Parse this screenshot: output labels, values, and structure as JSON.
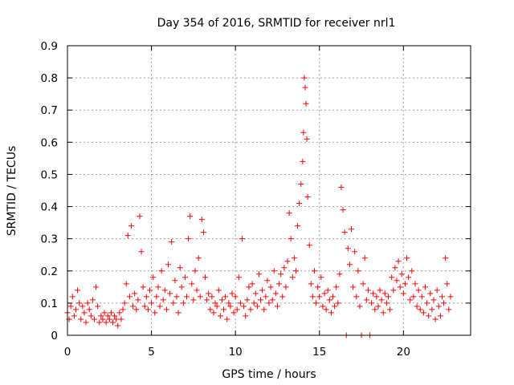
{
  "chart_data": {
    "type": "scatter",
    "title": "Day 354 of 2016, SRMTID for receiver nrl1",
    "xlabel": "GPS time / hours",
    "ylabel": "SRMTID / TECUs",
    "xlim": [
      0,
      24
    ],
    "ylim": [
      0,
      0.9
    ],
    "xticks": [
      0,
      5,
      10,
      15,
      20
    ],
    "xtick_labels": [
      "0",
      "5",
      "10",
      "15",
      "20"
    ],
    "yticks": [
      0,
      0.1,
      0.2,
      0.3,
      0.4,
      0.5,
      0.6,
      0.7,
      0.8,
      0.9
    ],
    "ytick_labels": [
      "0",
      "0.1",
      "0.2",
      "0.3",
      "0.4",
      "0.5",
      "0.6",
      "0.7",
      "0.8",
      "0.9"
    ],
    "grid": true,
    "marker": "+",
    "series": [
      {
        "name": "SRMTID",
        "color": "#ff0000",
        "points": [
          [
            0.0,
            0.07
          ],
          [
            0.1,
            0.05
          ],
          [
            0.2,
            0.09
          ],
          [
            0.3,
            0.12
          ],
          [
            0.4,
            0.06
          ],
          [
            0.5,
            0.08
          ],
          [
            0.6,
            0.14
          ],
          [
            0.7,
            0.1
          ],
          [
            0.8,
            0.05
          ],
          [
            0.9,
            0.09
          ],
          [
            1.0,
            0.07
          ],
          [
            1.1,
            0.04
          ],
          [
            1.2,
            0.1
          ],
          [
            1.3,
            0.08
          ],
          [
            1.4,
            0.06
          ],
          [
            1.5,
            0.11
          ],
          [
            1.6,
            0.05
          ],
          [
            1.7,
            0.15
          ],
          [
            1.8,
            0.09
          ],
          [
            1.9,
            0.04
          ],
          [
            2.0,
            0.06
          ],
          [
            2.1,
            0.05
          ],
          [
            2.2,
            0.07
          ],
          [
            2.3,
            0.04
          ],
          [
            2.4,
            0.06
          ],
          [
            2.5,
            0.05
          ],
          [
            2.6,
            0.07
          ],
          [
            2.7,
            0.04
          ],
          [
            2.8,
            0.06
          ],
          [
            2.9,
            0.05
          ],
          [
            3.0,
            0.03
          ],
          [
            3.1,
            0.07
          ],
          [
            3.2,
            0.05
          ],
          [
            3.3,
            0.08
          ],
          [
            3.4,
            0.1
          ],
          [
            3.5,
            0.16
          ],
          [
            3.6,
            0.31
          ],
          [
            3.7,
            0.12
          ],
          [
            3.8,
            0.34
          ],
          [
            3.9,
            0.09
          ],
          [
            4.0,
            0.13
          ],
          [
            4.1,
            0.08
          ],
          [
            4.2,
            0.11
          ],
          [
            4.3,
            0.37
          ],
          [
            4.4,
            0.26
          ],
          [
            4.5,
            0.15
          ],
          [
            4.6,
            0.09
          ],
          [
            4.7,
            0.12
          ],
          [
            4.8,
            0.08
          ],
          [
            4.9,
            0.14
          ],
          [
            5.0,
            0.1
          ],
          [
            5.1,
            0.18
          ],
          [
            5.2,
            0.07
          ],
          [
            5.3,
            0.12
          ],
          [
            5.4,
            0.15
          ],
          [
            5.5,
            0.09
          ],
          [
            5.6,
            0.2
          ],
          [
            5.7,
            0.11
          ],
          [
            5.8,
            0.14
          ],
          [
            5.9,
            0.08
          ],
          [
            6.0,
            0.22
          ],
          [
            6.1,
            0.13
          ],
          [
            6.2,
            0.29
          ],
          [
            6.3,
            0.1
          ],
          [
            6.4,
            0.17
          ],
          [
            6.5,
            0.12
          ],
          [
            6.6,
            0.07
          ],
          [
            6.7,
            0.21
          ],
          [
            6.8,
            0.15
          ],
          [
            6.9,
            0.1
          ],
          [
            7.0,
            0.18
          ],
          [
            7.1,
            0.12
          ],
          [
            7.2,
            0.3
          ],
          [
            7.3,
            0.37
          ],
          [
            7.4,
            0.16
          ],
          [
            7.5,
            0.11
          ],
          [
            7.6,
            0.2
          ],
          [
            7.7,
            0.14
          ],
          [
            7.8,
            0.24
          ],
          [
            7.9,
            0.12
          ],
          [
            8.0,
            0.36
          ],
          [
            8.1,
            0.32
          ],
          [
            8.2,
            0.18
          ],
          [
            8.3,
            0.11
          ],
          [
            8.4,
            0.13
          ],
          [
            8.5,
            0.08
          ],
          [
            8.6,
            0.12
          ],
          [
            8.7,
            0.07
          ],
          [
            8.8,
            0.1
          ],
          [
            8.9,
            0.09
          ],
          [
            9.0,
            0.14
          ],
          [
            9.1,
            0.06
          ],
          [
            9.2,
            0.11
          ],
          [
            9.3,
            0.08
          ],
          [
            9.4,
            0.12
          ],
          [
            9.5,
            0.05
          ],
          [
            9.6,
            0.1
          ],
          [
            9.7,
            0.09
          ],
          [
            9.8,
            0.13
          ],
          [
            9.9,
            0.07
          ],
          [
            10.0,
            0.12
          ],
          [
            10.1,
            0.08
          ],
          [
            10.2,
            0.18
          ],
          [
            10.3,
            0.1
          ],
          [
            10.4,
            0.3
          ],
          [
            10.5,
            0.09
          ],
          [
            10.6,
            0.06
          ],
          [
            10.7,
            0.11
          ],
          [
            10.8,
            0.15
          ],
          [
            10.9,
            0.08
          ],
          [
            11.0,
            0.16
          ],
          [
            11.1,
            0.1
          ],
          [
            11.2,
            0.13
          ],
          [
            11.3,
            0.09
          ],
          [
            11.4,
            0.19
          ],
          [
            11.5,
            0.11
          ],
          [
            11.6,
            0.14
          ],
          [
            11.7,
            0.08
          ],
          [
            11.8,
            0.12
          ],
          [
            11.9,
            0.17
          ],
          [
            12.0,
            0.1
          ],
          [
            12.1,
            0.15
          ],
          [
            12.2,
            0.11
          ],
          [
            12.3,
            0.2
          ],
          [
            12.4,
            0.13
          ],
          [
            12.5,
            0.09
          ],
          [
            12.6,
            0.16
          ],
          [
            12.7,
            0.19
          ],
          [
            12.8,
            0.12
          ],
          [
            12.9,
            0.21
          ],
          [
            13.0,
            0.15
          ],
          [
            13.1,
            0.23
          ],
          [
            13.2,
            0.38
          ],
          [
            13.3,
            0.3
          ],
          [
            13.4,
            0.18
          ],
          [
            13.5,
            0.24
          ],
          [
            13.6,
            0.2
          ],
          [
            13.7,
            0.34
          ],
          [
            13.8,
            0.41
          ],
          [
            13.9,
            0.47
          ],
          [
            14.0,
            0.54
          ],
          [
            14.05,
            0.63
          ],
          [
            14.1,
            0.8
          ],
          [
            14.15,
            0.77
          ],
          [
            14.2,
            0.72
          ],
          [
            14.25,
            0.61
          ],
          [
            14.3,
            0.43
          ],
          [
            14.4,
            0.28
          ],
          [
            14.5,
            0.16
          ],
          [
            14.6,
            0.12
          ],
          [
            14.7,
            0.2
          ],
          [
            14.8,
            0.1
          ],
          [
            14.9,
            0.15
          ],
          [
            15.0,
            0.12
          ],
          [
            15.1,
            0.18
          ],
          [
            15.2,
            0.09
          ],
          [
            15.3,
            0.13
          ],
          [
            15.4,
            0.08
          ],
          [
            15.5,
            0.14
          ],
          [
            15.6,
            0.11
          ],
          [
            15.7,
            0.07
          ],
          [
            15.8,
            0.12
          ],
          [
            15.9,
            0.09
          ],
          [
            16.0,
            0.15
          ],
          [
            16.1,
            0.1
          ],
          [
            16.2,
            0.19
          ],
          [
            16.3,
            0.46
          ],
          [
            16.4,
            0.39
          ],
          [
            16.5,
            0.32
          ],
          [
            16.6,
            0.0
          ],
          [
            16.7,
            0.27
          ],
          [
            16.8,
            0.22
          ],
          [
            16.9,
            0.33
          ],
          [
            17.0,
            0.15
          ],
          [
            17.1,
            0.26
          ],
          [
            17.2,
            0.12
          ],
          [
            17.3,
            0.2
          ],
          [
            17.4,
            0.09
          ],
          [
            17.5,
            0.0
          ],
          [
            17.6,
            0.16
          ],
          [
            17.7,
            0.24
          ],
          [
            17.8,
            0.11
          ],
          [
            17.9,
            0.14
          ],
          [
            18.0,
            0.0
          ],
          [
            18.1,
            0.1
          ],
          [
            18.2,
            0.13
          ],
          [
            18.3,
            0.08
          ],
          [
            18.4,
            0.12
          ],
          [
            18.5,
            0.09
          ],
          [
            18.6,
            0.14
          ],
          [
            18.7,
            0.11
          ],
          [
            18.8,
            0.07
          ],
          [
            18.9,
            0.13
          ],
          [
            19.0,
            0.1
          ],
          [
            19.1,
            0.12
          ],
          [
            19.2,
            0.08
          ],
          [
            19.3,
            0.18
          ],
          [
            19.4,
            0.14
          ],
          [
            19.5,
            0.21
          ],
          [
            19.6,
            0.17
          ],
          [
            19.7,
            0.23
          ],
          [
            19.8,
            0.15
          ],
          [
            19.9,
            0.19
          ],
          [
            20.0,
            0.13
          ],
          [
            20.1,
            0.16
          ],
          [
            20.2,
            0.24
          ],
          [
            20.3,
            0.18
          ],
          [
            20.4,
            0.11
          ],
          [
            20.5,
            0.2
          ],
          [
            20.6,
            0.12
          ],
          [
            20.7,
            0.16
          ],
          [
            20.8,
            0.09
          ],
          [
            20.9,
            0.14
          ],
          [
            21.0,
            0.08
          ],
          [
            21.1,
            0.12
          ],
          [
            21.2,
            0.07
          ],
          [
            21.3,
            0.15
          ],
          [
            21.4,
            0.1
          ],
          [
            21.5,
            0.06
          ],
          [
            21.6,
            0.13
          ],
          [
            21.7,
            0.08
          ],
          [
            21.8,
            0.11
          ],
          [
            21.9,
            0.05
          ],
          [
            22.0,
            0.14
          ],
          [
            22.1,
            0.09
          ],
          [
            22.2,
            0.06
          ],
          [
            22.3,
            0.12
          ],
          [
            22.4,
            0.1
          ],
          [
            22.5,
            0.24
          ],
          [
            22.6,
            0.16
          ],
          [
            22.7,
            0.08
          ],
          [
            22.8,
            0.12
          ]
        ]
      }
    ]
  }
}
